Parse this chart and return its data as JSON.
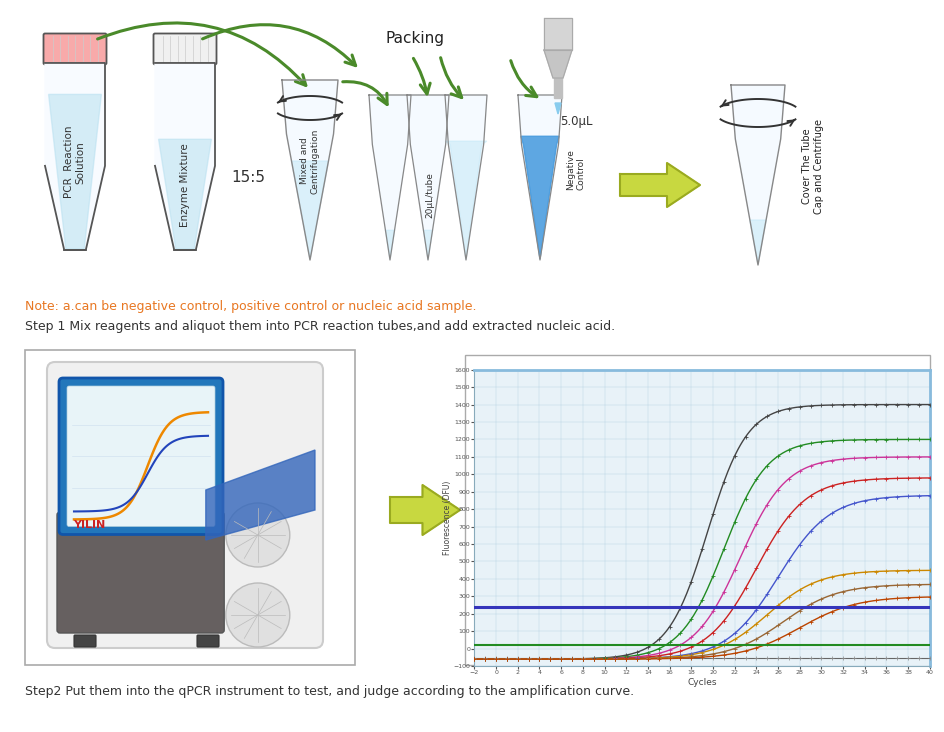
{
  "bg_color": "#ffffff",
  "note_color": "#e87722",
  "note_text": "Note: a.can be negative control, positive control or nucleic acid sample.",
  "step1_text": "Step 1 Mix reagents and aliquot them into PCR reaction tubes,and add extracted nucleic acid.",
  "step2_text": "Step2 Put them into the qPCR instrument to test, and judge according to the amplification curve.",
  "packing_label": "Packing",
  "ratio_label": "15:5",
  "vol_label": "5.0μL",
  "tube1_label": "20μL/tube",
  "tube2_label": "Negative\nControl",
  "cover_label": "Cover The Tube\nCap and Centrifuge",
  "mix_label": "Mixed and\nCentrifugation",
  "pcr_label": "PCR  Reaction\nSolution",
  "enzyme_label": "Enzyme Mixture",
  "graph_xlabel": "Cycles",
  "graph_ylabel": "Fluorescence (DFU)",
  "threshold_line_color": "#3535bb",
  "zero_line_color": "#228B22",
  "graph_bg": "#e8f2f8",
  "arrow_color": "#4a8a2a",
  "arrow_fill": "#c8d840",
  "arrow_edge": "#9aaa20"
}
